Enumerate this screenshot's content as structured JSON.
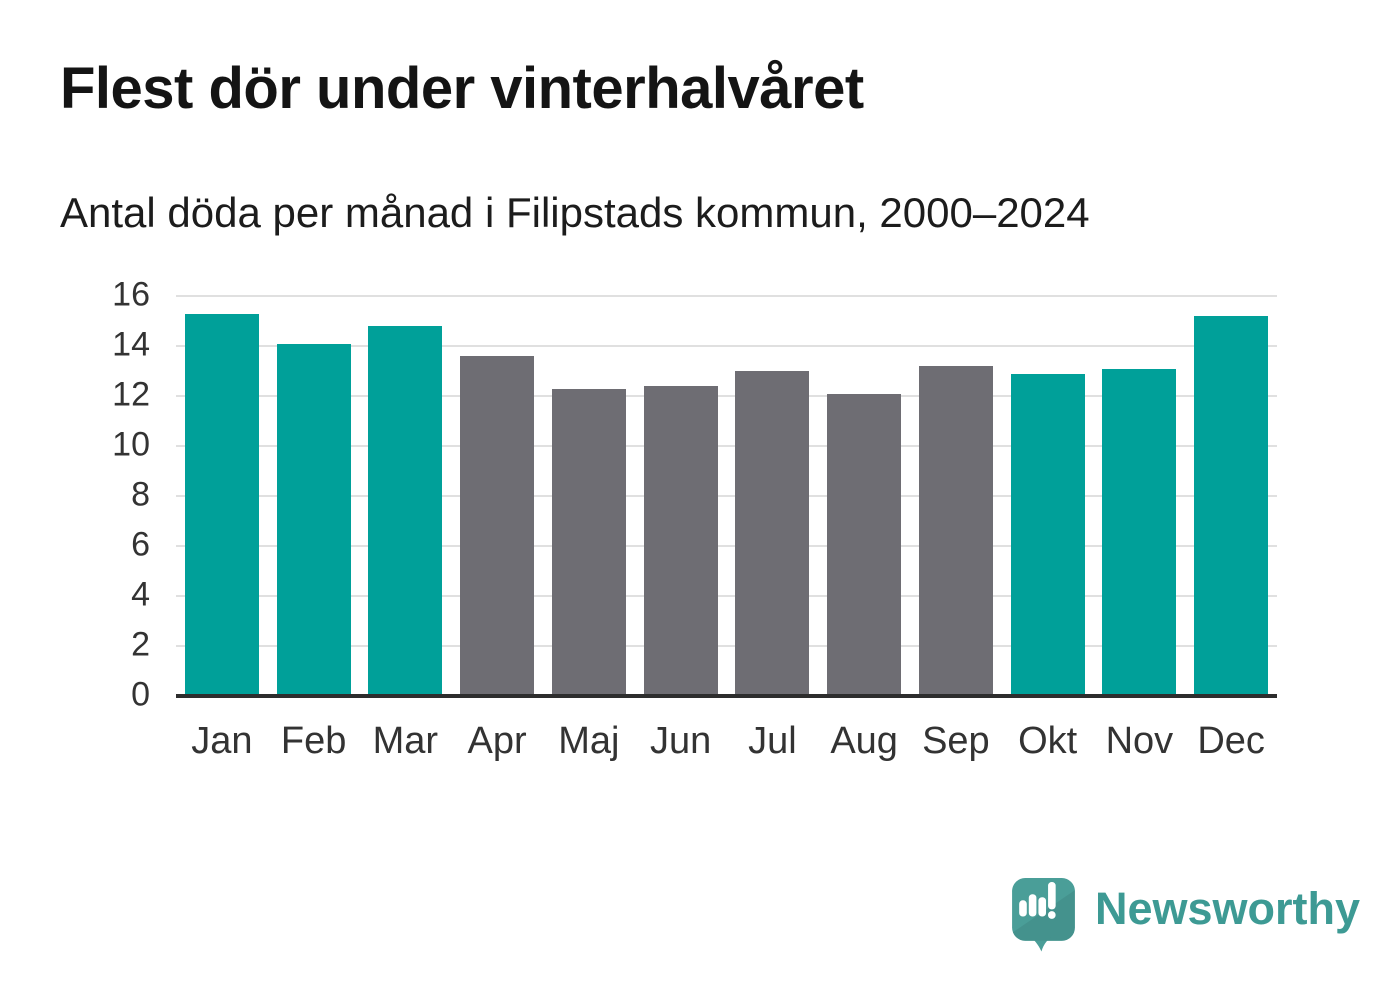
{
  "header": {
    "title": "Flest dör under vinterhalvåret",
    "subtitle": "Antal döda per månad i Filipstads kommun, 2000–2024"
  },
  "chart_data": {
    "type": "bar",
    "title": "Flest dör under vinterhalvåret",
    "subtitle": "Antal döda per månad i Filipstads kommun, 2000–2024",
    "categories": [
      "Jan",
      "Feb",
      "Mar",
      "Apr",
      "Maj",
      "Jun",
      "Jul",
      "Aug",
      "Sep",
      "Okt",
      "Nov",
      "Dec"
    ],
    "values": [
      15.3,
      14.1,
      14.8,
      13.6,
      12.3,
      12.4,
      13.0,
      12.1,
      13.2,
      12.9,
      13.1,
      15.2
    ],
    "bar_colors": [
      "#00a099",
      "#00a099",
      "#00a099",
      "#6e6d73",
      "#6e6d73",
      "#6e6d73",
      "#6e6d73",
      "#6e6d73",
      "#6e6d73",
      "#00a099",
      "#00a099",
      "#00a099"
    ],
    "xlabel": "",
    "ylabel": "",
    "ylim": [
      0,
      16
    ],
    "yticks": [
      0,
      2,
      4,
      6,
      8,
      10,
      12,
      14,
      16
    ],
    "grid": "horizontal",
    "legend": "none",
    "highlight_color": "#00a099",
    "base_color": "#6e6d73"
  },
  "colors": {
    "accent_teal": "#00a099",
    "neutral_gray": "#6e6d73",
    "axis_line": "#2d2d2d",
    "gridline": "#e0e0e0",
    "logo_teal": "#3d9a94",
    "logo_icon_teal": "#4a9e98"
  },
  "footer": {
    "brand": "Newsworthy"
  }
}
